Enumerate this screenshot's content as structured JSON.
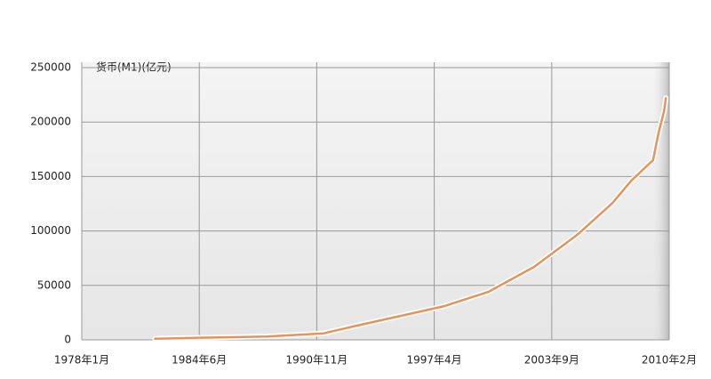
{
  "chart_data": {
    "type": "line",
    "y_label": "货币(M1)(亿元)",
    "x": [
      1982.0,
      1984.4,
      1988.1,
      1991.2,
      1993.0,
      1995.4,
      1997.8,
      2000.2,
      2002.7,
      2005.1,
      2007.0,
      2008.0,
      2009.2,
      2009.5,
      2009.8,
      2009.9
    ],
    "series": [
      {
        "name": "货币(M1)",
        "color": "#e8925a",
        "values": [
          1000,
          2000,
          3000,
          6000,
          13000,
          22000,
          31000,
          44000,
          67000,
          97000,
          126000,
          146000,
          165000,
          190000,
          210000,
          222000
        ]
      }
    ],
    "xlim": [
      1978,
      2010.083
    ],
    "xticks": [
      {
        "value": 1978,
        "label": "1978年1月"
      },
      {
        "value": 1984.417,
        "label": "1984年6月"
      },
      {
        "value": 1990.833,
        "label": "1990年11月"
      },
      {
        "value": 1997.25,
        "label": "1997年4月"
      },
      {
        "value": 2003.667,
        "label": "2003年9月"
      },
      {
        "value": 2010.083,
        "label": "2010年2月"
      }
    ],
    "ylim": [
      0,
      250000
    ],
    "yticks": [
      0,
      50000,
      100000,
      150000,
      200000,
      250000
    ],
    "grid": true
  }
}
